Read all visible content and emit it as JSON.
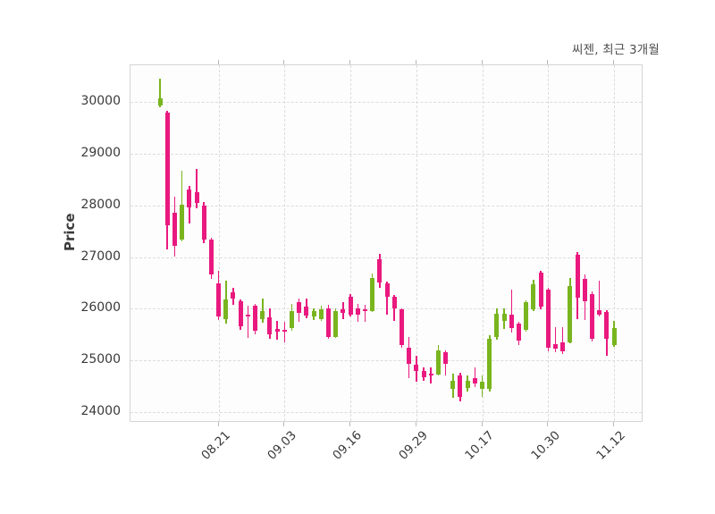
{
  "title": "씨젠, 최근 3개월",
  "y_axis": {
    "label": "Price",
    "ticks": [
      30000,
      29000,
      28000,
      27000,
      26000,
      25000,
      24000
    ]
  },
  "x_axis": {
    "tick_labels": [
      "08.21",
      "09.03",
      "09.16",
      "09.29",
      "10.17",
      "10.30",
      "11.12"
    ],
    "tick_indices": [
      8,
      17,
      26,
      35,
      44,
      53,
      62
    ]
  },
  "colors": {
    "up": "#79b51e",
    "down": "#e9197f",
    "grid": "#dcdcdc",
    "plot_border": "#d5d5d5",
    "tick_text": "#3a3a3a",
    "title_text": "#4d4d4d",
    "background": "#ffffff",
    "plot_background": "#fdfdfd"
  },
  "chart_data": {
    "type": "candlestick",
    "title": "씨젠, 최근 3개월",
    "ylabel": "Price",
    "ylim": [
      23790,
      30710
    ],
    "grid": true,
    "x_tick_labels": [
      "08.21",
      "09.03",
      "09.16",
      "09.29",
      "10.17",
      "10.30",
      "11.12"
    ],
    "x_tick_indices": [
      8,
      17,
      26,
      35,
      44,
      53,
      62
    ],
    "ohlc_order": [
      "open",
      "high",
      "low",
      "close"
    ],
    "candles": [
      [
        29930,
        30460,
        29900,
        30070
      ],
      [
        29790,
        29830,
        27150,
        27620
      ],
      [
        27850,
        28170,
        27000,
        27210
      ],
      [
        27330,
        28670,
        27300,
        28020
      ],
      [
        28300,
        28380,
        27650,
        27950
      ],
      [
        28250,
        28700,
        27950,
        28050
      ],
      [
        28000,
        28060,
        27270,
        27340
      ],
      [
        27340,
        27380,
        26570,
        26660
      ],
      [
        26490,
        26740,
        25780,
        25840
      ],
      [
        25800,
        26540,
        25710,
        26170
      ],
      [
        26320,
        26400,
        26080,
        26200
      ],
      [
        26150,
        26180,
        25590,
        25660
      ],
      [
        25890,
        26050,
        25440,
        25850
      ],
      [
        26060,
        26090,
        25500,
        25570
      ],
      [
        25790,
        26200,
        25720,
        25950
      ],
      [
        25840,
        26000,
        25420,
        25500
      ],
      [
        25610,
        25760,
        25390,
        25550
      ],
      [
        25590,
        25740,
        25350,
        25560
      ],
      [
        25620,
        26100,
        25580,
        25950
      ],
      [
        26120,
        26200,
        25740,
        25920
      ],
      [
        26040,
        26200,
        25810,
        25870
      ],
      [
        25840,
        26000,
        25780,
        25950
      ],
      [
        25800,
        26060,
        25770,
        25990
      ],
      [
        26000,
        26070,
        25420,
        25450
      ],
      [
        25450,
        26010,
        25430,
        25950
      ],
      [
        25990,
        26130,
        25800,
        25920
      ],
      [
        26230,
        26290,
        25850,
        25890
      ],
      [
        26000,
        26100,
        25750,
        25890
      ],
      [
        25990,
        26080,
        25740,
        25950
      ],
      [
        25950,
        26680,
        25930,
        26600
      ],
      [
        26960,
        27060,
        26400,
        26500
      ],
      [
        26490,
        26530,
        25880,
        26230
      ],
      [
        26230,
        26260,
        25760,
        26010
      ],
      [
        25990,
        26010,
        25250,
        25300
      ],
      [
        25240,
        25450,
        24650,
        24930
      ],
      [
        24920,
        25080,
        24580,
        24790
      ],
      [
        24800,
        24870,
        24600,
        24670
      ],
      [
        24750,
        24870,
        24550,
        24700
      ],
      [
        24730,
        25300,
        24700,
        25190
      ],
      [
        25150,
        25200,
        24700,
        24930
      ],
      [
        24440,
        24750,
        24280,
        24610
      ],
      [
        24700,
        24760,
        24200,
        24290
      ],
      [
        24470,
        24710,
        24400,
        24610
      ],
      [
        24660,
        24860,
        24480,
        24550
      ],
      [
        24450,
        24700,
        24290,
        24580
      ],
      [
        24440,
        25480,
        24400,
        25420
      ],
      [
        25450,
        26000,
        25400,
        25900
      ],
      [
        25770,
        26000,
        25600,
        25910
      ],
      [
        25880,
        26370,
        25530,
        25630
      ],
      [
        25710,
        25750,
        25300,
        25390
      ],
      [
        25580,
        26160,
        25560,
        26120
      ],
      [
        25990,
        26560,
        25960,
        26470
      ],
      [
        26700,
        26730,
        25990,
        26030
      ],
      [
        26370,
        26400,
        25180,
        25240
      ],
      [
        25320,
        25640,
        25150,
        25220
      ],
      [
        25340,
        25650,
        25130,
        25170
      ],
      [
        25350,
        26590,
        25330,
        26430
      ],
      [
        27050,
        27090,
        25790,
        26220
      ],
      [
        26570,
        26660,
        25770,
        26140
      ],
      [
        26280,
        26330,
        25360,
        25420
      ],
      [
        25970,
        26540,
        25850,
        25890
      ],
      [
        25930,
        25970,
        25080,
        25420
      ],
      [
        25300,
        25760,
        25260,
        25620
      ]
    ]
  }
}
